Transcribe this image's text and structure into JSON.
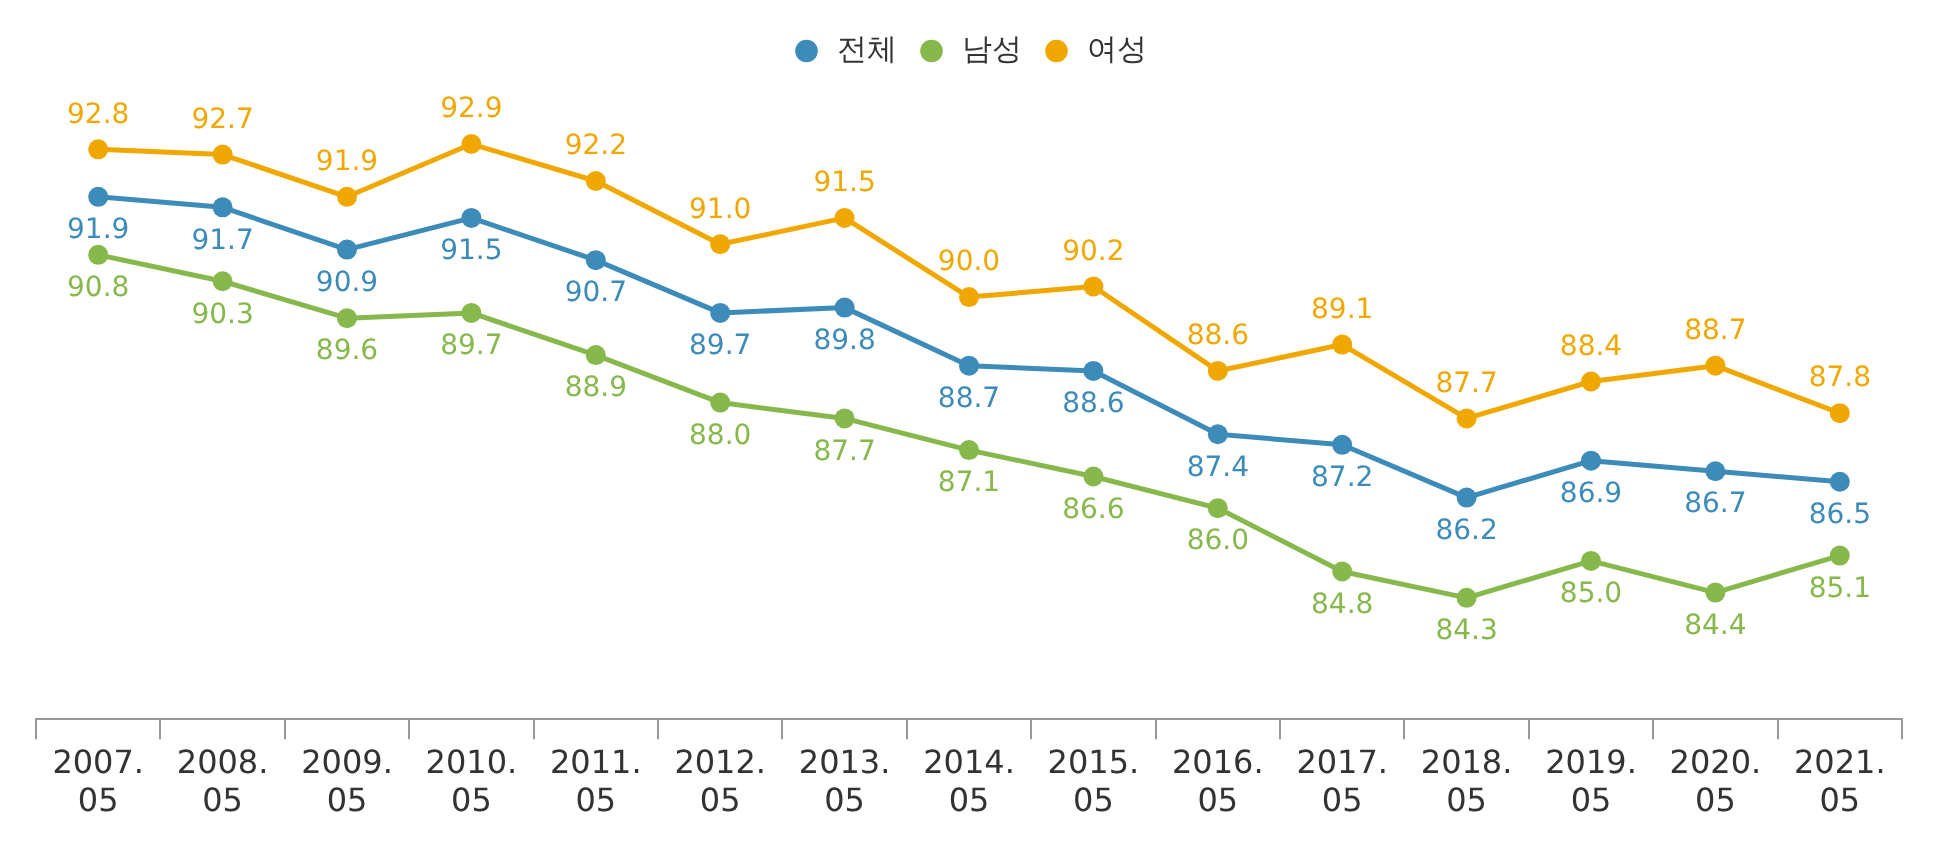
{
  "chart_data": {
    "type": "line",
    "categories": [
      "2007.\n05",
      "2008.\n05",
      "2009.\n05",
      "2010.\n05",
      "2011.\n05",
      "2012.\n05",
      "2013.\n05",
      "2014.\n05",
      "2015.\n05",
      "2016.\n05",
      "2017.\n05",
      "2018.\n05",
      "2019.\n05",
      "2020.\n05",
      "2021.\n05"
    ],
    "series": [
      {
        "name": "전체",
        "color": "#3d8bb8",
        "values": [
          91.9,
          91.7,
          90.9,
          91.5,
          90.7,
          89.7,
          89.8,
          88.7,
          88.6,
          87.4,
          87.2,
          86.2,
          86.9,
          86.7,
          86.5
        ],
        "value_labels": [
          "91.9",
          "91.7",
          "90.9",
          "91.5",
          "90.7",
          "89.7",
          "89.8",
          "88.7",
          "88.6",
          "87.4",
          "87.2",
          "86.2",
          "86.9",
          "86.7",
          "86.5"
        ]
      },
      {
        "name": "남성",
        "color": "#86b84c",
        "values": [
          90.8,
          90.3,
          89.6,
          89.7,
          88.9,
          88.0,
          87.7,
          87.1,
          86.6,
          86.0,
          84.8,
          84.3,
          85.0,
          84.4,
          85.1
        ],
        "value_labels": [
          "90.8",
          "90.3",
          "89.6",
          "89.7",
          "88.9",
          "88.0",
          "87.7",
          "87.1",
          "86.6",
          "86.0",
          "84.8",
          "84.3",
          "85.0",
          "84.4",
          "85.1"
        ]
      },
      {
        "name": "여성",
        "color": "#f0a800",
        "values": [
          92.8,
          92.7,
          91.9,
          92.9,
          92.2,
          91.0,
          91.5,
          90.0,
          90.2,
          88.6,
          89.1,
          87.7,
          88.4,
          88.7,
          87.8
        ],
        "value_labels": [
          "92.8",
          "92.7",
          "91.9",
          "92.9",
          "92.2",
          "91.0",
          "91.5",
          "90.0",
          "90.2",
          "88.6",
          "89.1",
          "87.7",
          "88.4",
          "88.7",
          "87.8"
        ]
      }
    ],
    "legend": "top",
    "marker": "circle",
    "line_style": "solid",
    "grid": false
  }
}
